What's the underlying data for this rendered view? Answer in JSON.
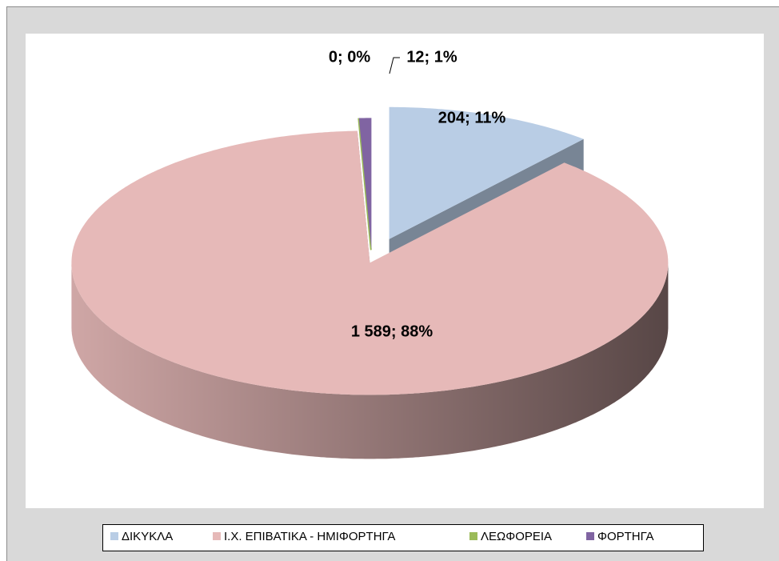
{
  "chart_data": {
    "type": "pie3d",
    "categories": [
      "ΔΙΚΥΚΛΑ",
      "Ι.Χ. ΕΠΙΒΑΤΙΚΑ - ΗΜΙΦΟΡΤΗΓΑ",
      "ΛΕΩΦΟΡΕΙΑ",
      "ΦΟΡΤΗΓΑ"
    ],
    "values": [
      204,
      1589,
      0,
      12
    ],
    "value_labels": [
      "204; 11%",
      "1 589; 88%",
      "0; 0%",
      "12; 1%"
    ],
    "colors": [
      "#b9cde5",
      "#e6b9b8",
      "#9bbb59",
      "#8064a2"
    ],
    "legend": "bottom"
  }
}
